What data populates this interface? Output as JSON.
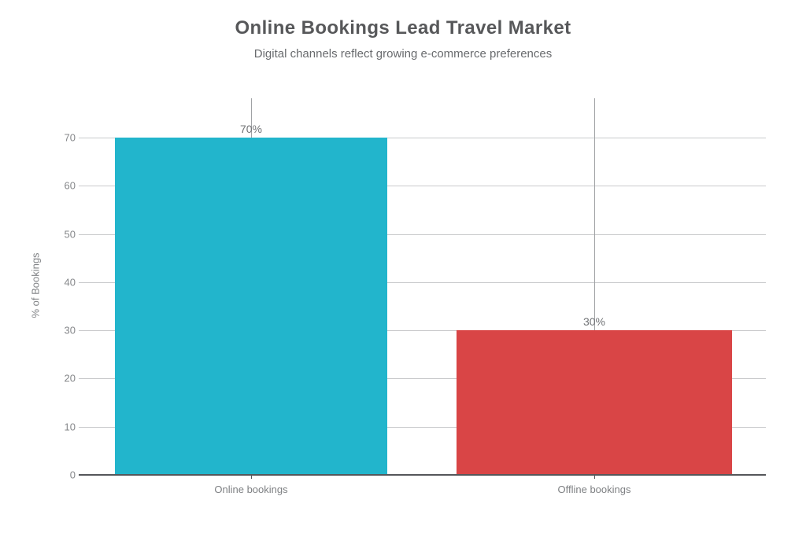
{
  "chart_data": {
    "type": "bar",
    "title": "Online Bookings Lead Travel Market",
    "subtitle": "Digital channels reflect growing e-commerce preferences",
    "ylabel": "% of Bookings",
    "xlabel": "",
    "categories": [
      "Online bookings",
      "Offline bookings"
    ],
    "values": [
      70,
      30
    ],
    "value_labels": [
      "70%",
      "30%"
    ],
    "bar_colors": [
      "#22b5cc",
      "#d94546"
    ],
    "yticks": [
      0,
      10,
      20,
      30,
      40,
      50,
      60,
      70
    ],
    "ylim": [
      0,
      70
    ],
    "grid": "horizontal gridlines on, vertical line at each category center",
    "legend": "none",
    "background_color": "#ffffff",
    "text_color": "#57585a"
  }
}
